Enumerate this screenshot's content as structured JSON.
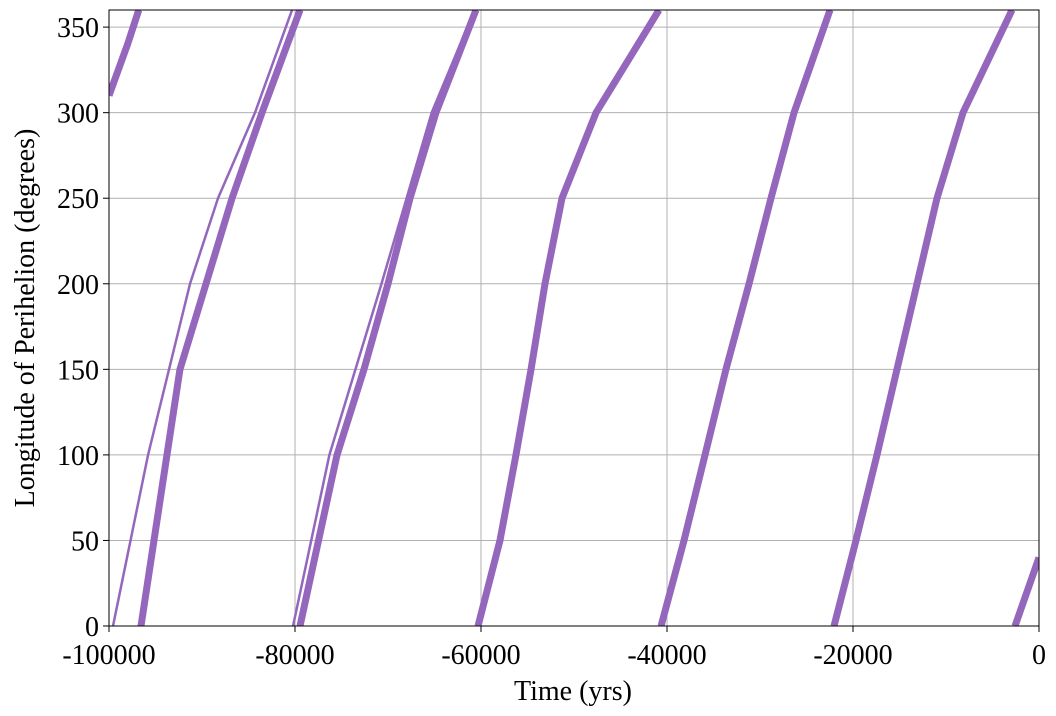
{
  "chart_data": {
    "type": "line",
    "xlabel": "Time (yrs)",
    "ylabel": "Longitude of Perihelion (degrees)",
    "xlim": [
      -100000,
      0
    ],
    "ylim": [
      0,
      360
    ],
    "xticks": [
      -100000,
      -80000,
      -60000,
      -40000,
      -20000,
      0
    ],
    "yticks": [
      0,
      50,
      100,
      150,
      200,
      250,
      300,
      350
    ],
    "grid": true,
    "series": [
      {
        "color": "#9467bd",
        "x": [
          -100000,
          -98000,
          -96800,
          null,
          -96560,
          -92370,
          -86770,
          -83550,
          -79460,
          null,
          -79460,
          -75480,
          -72580,
          -70000,
          -67630,
          -64840,
          -60540,
          null,
          -60320,
          -57960,
          -56240,
          -54620,
          -53120,
          -51290,
          -47630,
          -40860,
          null,
          -40640,
          -38170,
          -35910,
          -33660,
          -31180,
          -28820,
          -26340,
          -22470,
          null,
          -22040,
          -19680,
          -17420,
          -15270,
          -13120,
          -10970,
          -8170,
          -2900,
          null,
          -2580,
          0
        ],
        "values": [
          310,
          340,
          360,
          null,
          0,
          150,
          250,
          300,
          360,
          null,
          0,
          100,
          150,
          200,
          250,
          300,
          360,
          null,
          0,
          50,
          100,
          150,
          200,
          250,
          300,
          360,
          null,
          0,
          50,
          100,
          150,
          200,
          250,
          300,
          360,
          null,
          0,
          50,
          100,
          150,
          200,
          250,
          300,
          360,
          null,
          0,
          40
        ]
      },
      {
        "color": "#9467bd",
        "x": [
          -99570,
          -95800,
          -91290,
          -88280,
          -84300,
          -80320,
          null,
          -80210,
          -76300,
          -70700,
          -65300,
          -60700
        ],
        "values": [
          0,
          100,
          200,
          250,
          300,
          360,
          null,
          0,
          100,
          200,
          300,
          360
        ]
      }
    ]
  }
}
